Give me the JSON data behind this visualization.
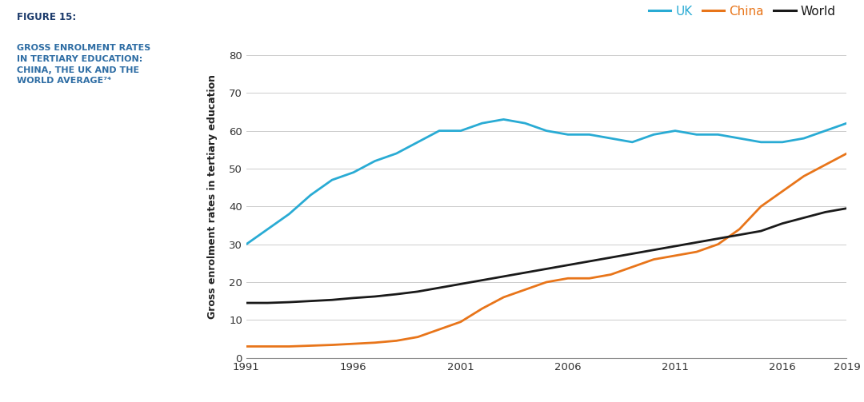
{
  "years": [
    1991,
    1992,
    1993,
    1994,
    1995,
    1996,
    1997,
    1998,
    1999,
    2000,
    2001,
    2002,
    2003,
    2004,
    2005,
    2006,
    2007,
    2008,
    2009,
    2010,
    2011,
    2012,
    2013,
    2014,
    2015,
    2016,
    2017,
    2018,
    2019
  ],
  "uk": [
    30,
    34,
    38,
    43,
    47,
    49,
    52,
    54,
    57,
    60,
    60,
    62,
    63,
    62,
    60,
    59,
    59,
    58,
    57,
    59,
    60,
    59,
    59,
    58,
    57,
    57,
    58,
    60,
    62
  ],
  "china": [
    3.0,
    3.0,
    3.0,
    3.2,
    3.4,
    3.7,
    4.0,
    4.5,
    5.5,
    7.5,
    9.5,
    13,
    16,
    18,
    20,
    21,
    21,
    22,
    24,
    26,
    27,
    28,
    30,
    34,
    40,
    44,
    48,
    51,
    54
  ],
  "world": [
    14.5,
    14.5,
    14.7,
    15.0,
    15.3,
    15.8,
    16.2,
    16.8,
    17.5,
    18.5,
    19.5,
    20.5,
    21.5,
    22.5,
    23.5,
    24.5,
    25.5,
    26.5,
    27.5,
    28.5,
    29.5,
    30.5,
    31.5,
    32.5,
    33.5,
    35.5,
    37,
    38.5,
    39.5
  ],
  "uk_color": "#29ABD4",
  "china_color": "#E8751A",
  "world_color": "#1A1A1A",
  "background_color": "#FFFFFF",
  "ylabel": "Gross enrolment rates in tertiary education",
  "title_bold": "FIGURE 15:",
  "title_sub": "GROSS ENROLMENT RATES\nIN TERTIARY EDUCATION:\nCHINA, THE UK AND THE\nWORLD AVERAGE⁷⁴",
  "title_bold_color": "#1B3A6B",
  "title_sub_color": "#2E6DA4",
  "ylim": [
    0,
    85
  ],
  "yticks": [
    0,
    10,
    20,
    30,
    40,
    50,
    60,
    70,
    80
  ],
  "xticks": [
    1991,
    1996,
    2001,
    2006,
    2011,
    2016,
    2019
  ],
  "linewidth": 2.0
}
